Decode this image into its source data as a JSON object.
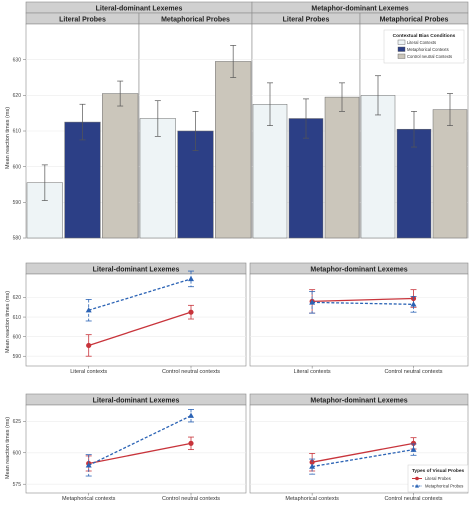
{
  "chart_data": [
    {
      "type": "bar",
      "id": "top",
      "ylabel": "Mean reaction times (ms)",
      "ylim": [
        580,
        640
      ],
      "yticks": [
        "580",
        "590",
        "600",
        "610",
        "620",
        "630"
      ],
      "grid": true,
      "legend": {
        "title": "Contextual Bias Conditions",
        "placement": "top-right",
        "entries": [
          "Literal Contexts",
          "Metaphorical Contexts",
          "Control neutral Contexts"
        ]
      },
      "colors": {
        "Literal Contexts": "#eef4f6",
        "Metaphorical Contexts": "#2c3f86",
        "Control neutral Contexts": "#cbc6bb"
      },
      "panels": [
        {
          "outer": "Literal-dominant Lexemes",
          "inner": "Literal Probes",
          "values": [
            595.5,
            612.5,
            620.5
          ],
          "errors": [
            5,
            5,
            3.5
          ]
        },
        {
          "outer": "Literal-dominant Lexemes",
          "inner": "Metaphorical Probes",
          "values": [
            613.5,
            610,
            629.5
          ],
          "errors": [
            5,
            5.5,
            4.5
          ]
        },
        {
          "outer": "Metaphor-dominant Lexemes",
          "inner": "Literal Probes",
          "values": [
            617.5,
            613.5,
            619.5
          ],
          "errors": [
            6,
            5.5,
            4
          ]
        },
        {
          "outer": "Metaphor-dominant Lexemes",
          "inner": "Metaphorical Probes",
          "values": [
            620,
            610.5,
            616
          ],
          "errors": [
            5.5,
            5,
            4.5
          ]
        }
      ]
    },
    {
      "type": "line",
      "id": "middle",
      "ylabel": "Mean reaction times (ms)",
      "ylim": [
        585,
        632
      ],
      "yticks": [
        "590",
        "600",
        "610",
        "620"
      ],
      "grid": true,
      "panels": [
        {
          "title": "Literal-dominant Lexemes",
          "categories": [
            "Literal contexts",
            "Control neutral contexts"
          ],
          "series": [
            {
              "style": "literal",
              "values": [
                595.5,
                612.5
              ],
              "errors": [
                5.5,
                3.5
              ]
            },
            {
              "style": "metaphorical",
              "values": [
                613.5,
                629.5
              ],
              "errors": [
                5.5,
                4
              ]
            }
          ]
        },
        {
          "title": "Metaphor-dominant Lexemes",
          "categories": [
            "Literal contexts",
            "Control neutral contexts"
          ],
          "series": [
            {
              "style": "literal",
              "values": [
                618,
                619.5
              ],
              "errors": [
                6,
                4.5
              ]
            },
            {
              "style": "metaphorical",
              "values": [
                617.5,
                616.5
              ],
              "errors": [
                5.5,
                4
              ]
            }
          ]
        }
      ]
    },
    {
      "type": "line",
      "id": "bottom",
      "ylabel": "Mean reaction times (ms)",
      "ylim": [
        568,
        638
      ],
      "yticks": [
        "575",
        "600",
        "625"
      ],
      "grid": true,
      "legend": {
        "title": "Types of Visual Probes",
        "placement": "bottom-right",
        "entries": [
          "Literal Probes",
          "Metaphorical Probes"
        ]
      },
      "panels": [
        {
          "title": "Literal-dominant Lexemes",
          "categories": [
            "Metaphorical contexts",
            "Control neutral contexts"
          ],
          "series": [
            {
              "style": "literal",
              "values": [
                591.5,
                607.5
              ],
              "errors": [
                6,
                5
              ]
            },
            {
              "style": "metaphorical",
              "values": [
                590,
                629.5
              ],
              "errors": [
                8.5,
                5
              ]
            }
          ]
        },
        {
          "title": "Metaphor-dominant Lexemes",
          "categories": [
            "Metaphorical contexts",
            "Control neutral contexts"
          ],
          "series": [
            {
              "style": "literal",
              "values": [
                592.5,
                607.5
              ],
              "errors": [
                7,
                4.5
              ]
            },
            {
              "style": "metaphorical",
              "values": [
                589,
                602.5
              ],
              "errors": [
                6,
                4.5
              ]
            }
          ]
        }
      ]
    }
  ],
  "colors": {
    "literal_line": "#c8343b",
    "metaphorical_line": "#2b63b5"
  }
}
